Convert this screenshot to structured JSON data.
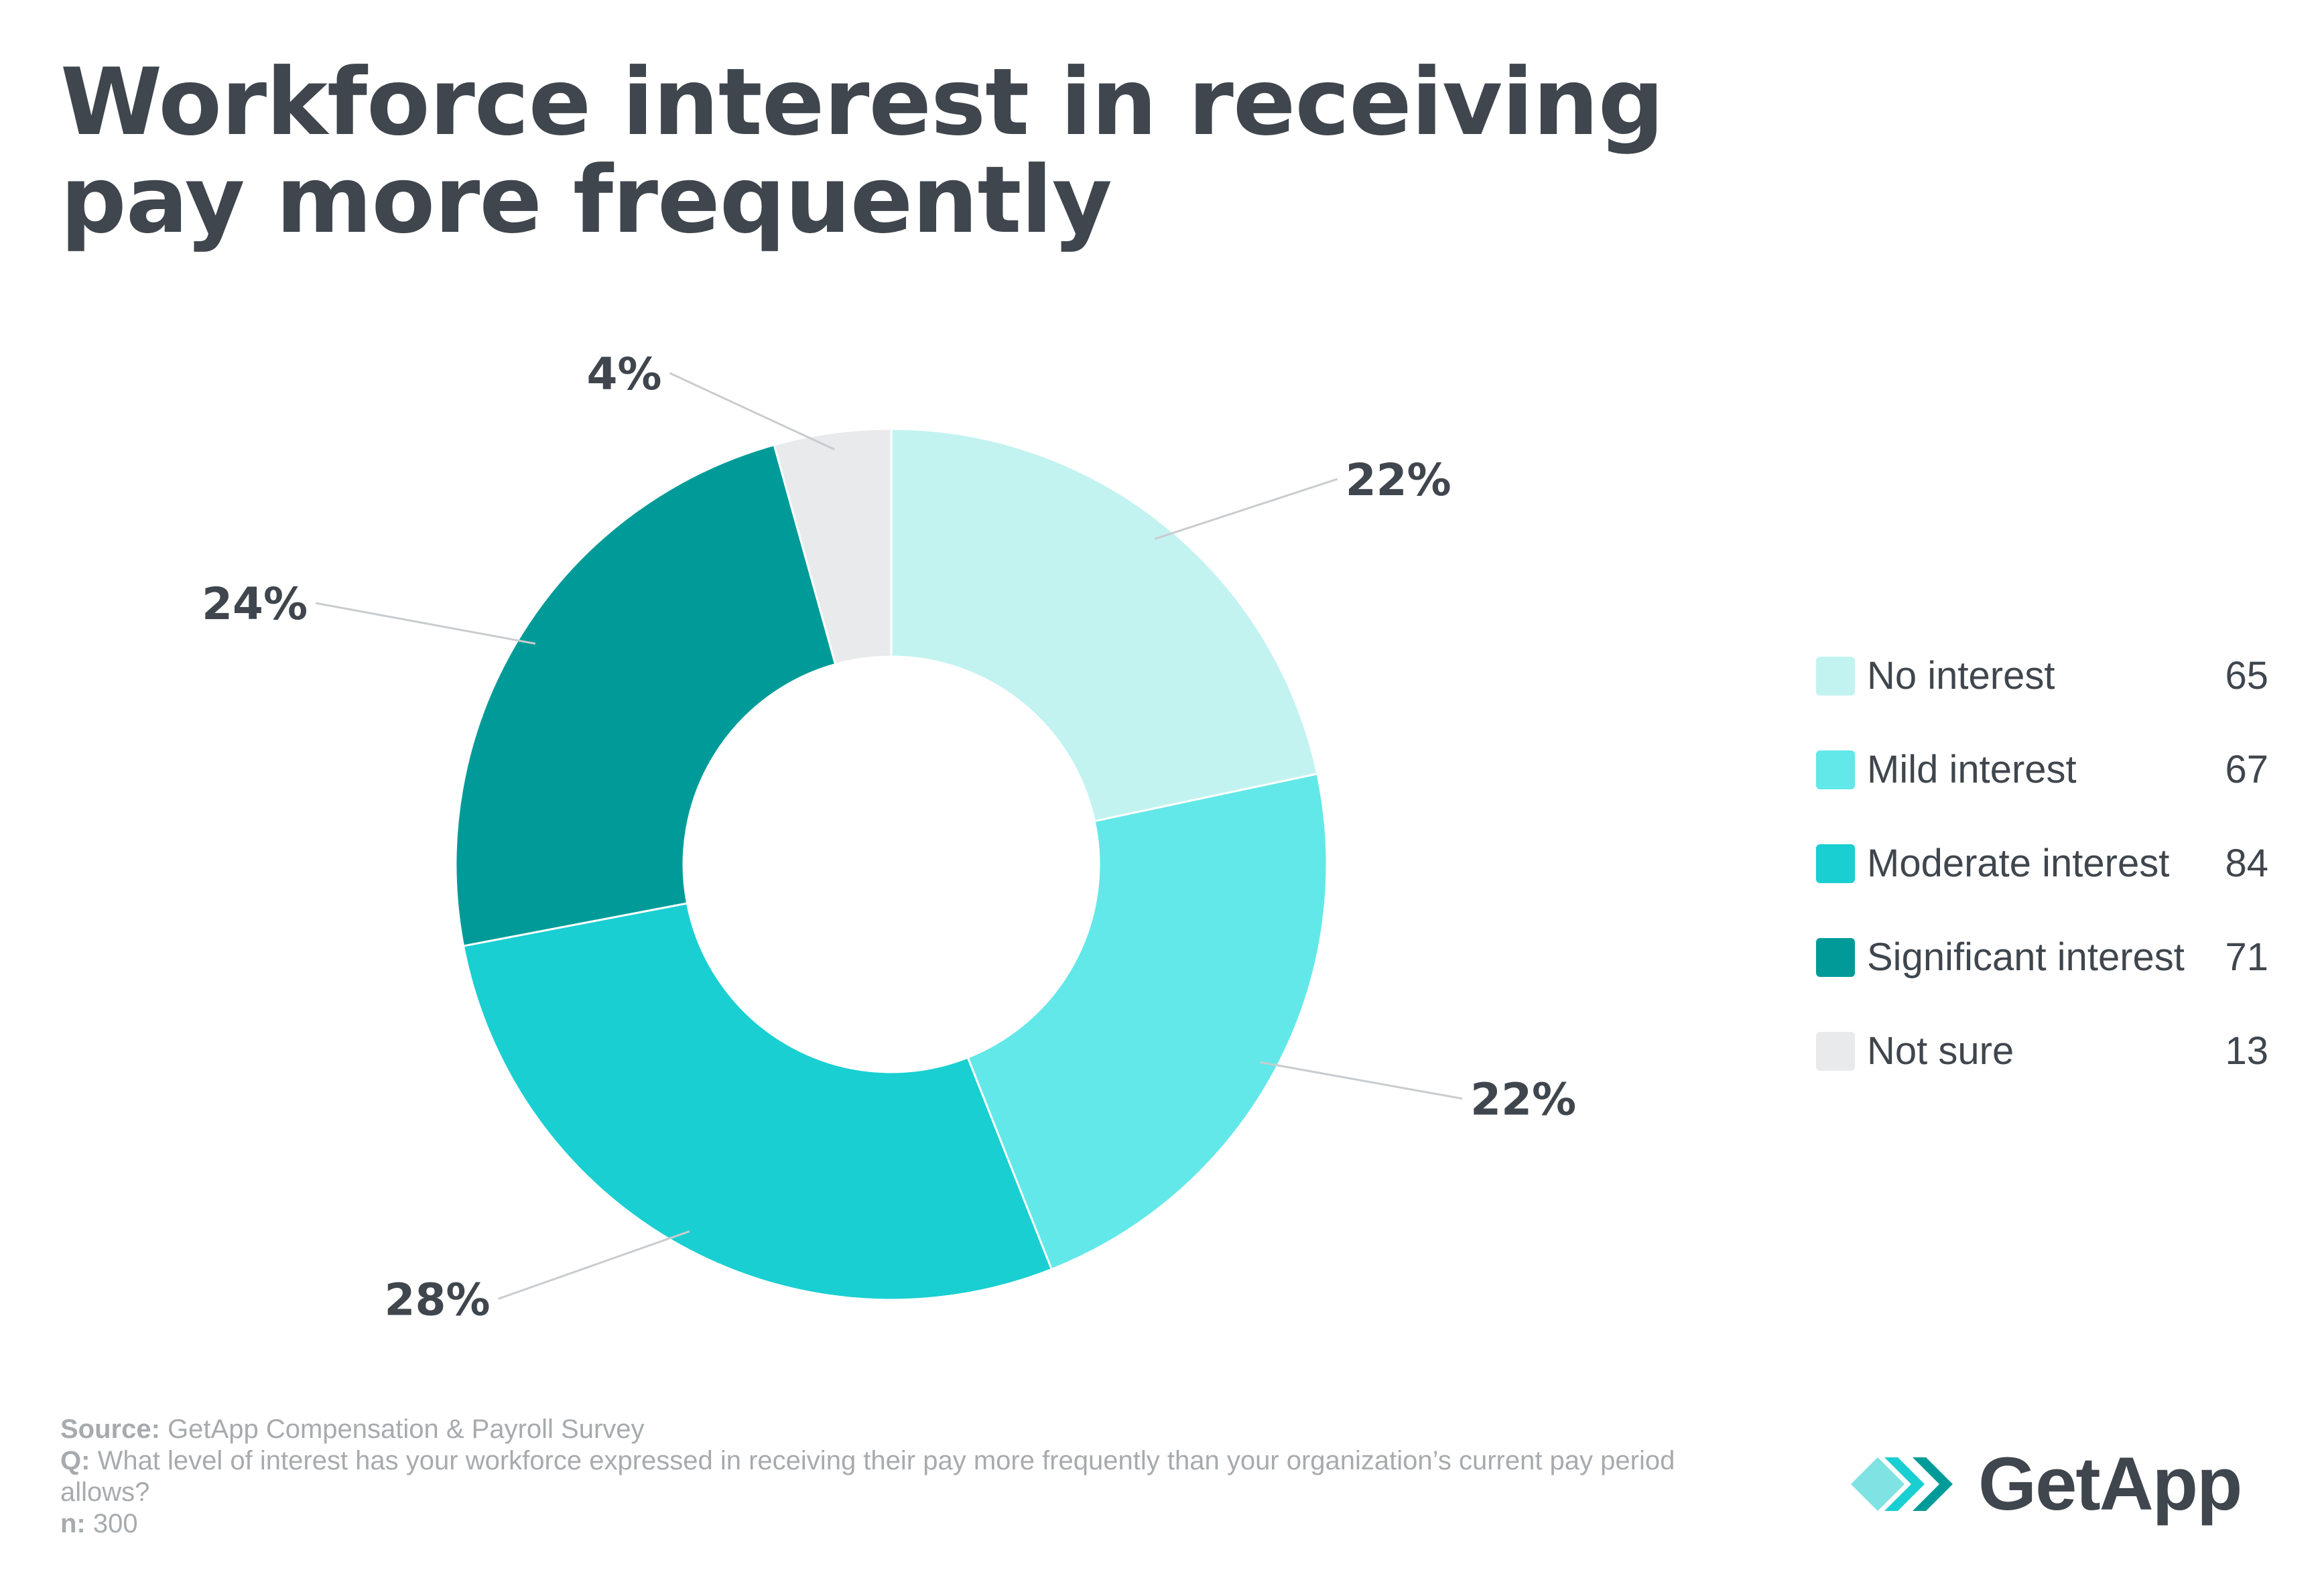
{
  "title": "Workforce interest in receiving pay more frequently",
  "chart_data": {
    "type": "pie",
    "title": "Workforce interest in receiving pay more frequently",
    "categories": [
      "No interest",
      "Mild interest",
      "Moderate interest",
      "Significant interest",
      "Not sure"
    ],
    "values": [
      65,
      67,
      84,
      71,
      13
    ],
    "percent_labels": [
      "22%",
      "22%",
      "28%",
      "24%",
      "4%"
    ],
    "colors": [
      "#c2f3f1",
      "#62e8e8",
      "#19cfd2",
      "#009b98",
      "#e8eaeb"
    ],
    "donut": true,
    "legend_position": "right"
  },
  "footer": {
    "source_label": "Source:",
    "source_text": "GetApp Compensation & Payroll Survey",
    "question_label": "Q:",
    "question_text": "What level of interest has your workforce expressed in receiving their pay more frequently than your organization’s current pay period allows?",
    "n_label": "n:",
    "n_text": "300"
  },
  "logo": {
    "text": "GetApp",
    "colors": [
      "#7ee3e2",
      "#19cfd2",
      "#009b98"
    ]
  }
}
